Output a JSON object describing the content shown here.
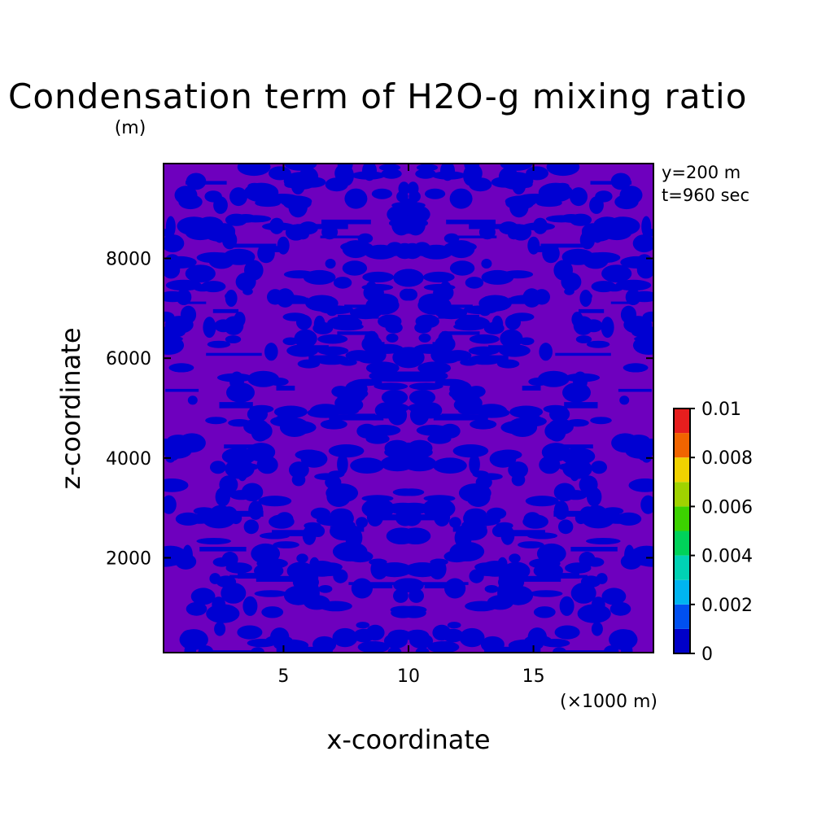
{
  "chart_data": {
    "type": "heatmap",
    "title": "Condensation term of H2O-g mixing ratio",
    "xlabel": "x-coordinate",
    "ylabel": "z-coordinate",
    "x_unit": "(×1000 m)",
    "y_unit": "(m)",
    "xlim": [
      0.2,
      19.8
    ],
    "ylim": [
      100,
      9900
    ],
    "x_ticks": [
      "5",
      "10",
      "15"
    ],
    "x_tick_values": [
      5,
      10,
      15
    ],
    "y_ticks": [
      "2000",
      "4000",
      "6000",
      "8000"
    ],
    "y_tick_values": [
      2000,
      4000,
      6000,
      8000
    ],
    "annotations": [
      "y=200 m",
      "t=960 sec"
    ],
    "colorbar": {
      "min": 0,
      "max": 0.01,
      "tick_labels": [
        "0",
        "0.002",
        "0.004",
        "0.006",
        "0.008",
        "0.01"
      ],
      "tick_values": [
        0,
        0.002,
        0.004,
        0.006,
        0.008,
        0.01
      ],
      "levels": [
        0,
        0.001,
        0.002,
        0.003,
        0.004,
        0.005,
        0.006,
        0.007,
        0.008,
        0.009,
        0.01
      ],
      "colors": [
        "#0000c8",
        "#0050f0",
        "#00b4f0",
        "#00d2b4",
        "#00d25a",
        "#3cd200",
        "#a0d200",
        "#f0d200",
        "#f06400",
        "#e61e1e"
      ]
    },
    "field_colors": {
      "low": "#0000d2",
      "high": "#6e00be"
    },
    "field_description": "noisy two-level pattern, values mostly between 0 and 0.001"
  }
}
